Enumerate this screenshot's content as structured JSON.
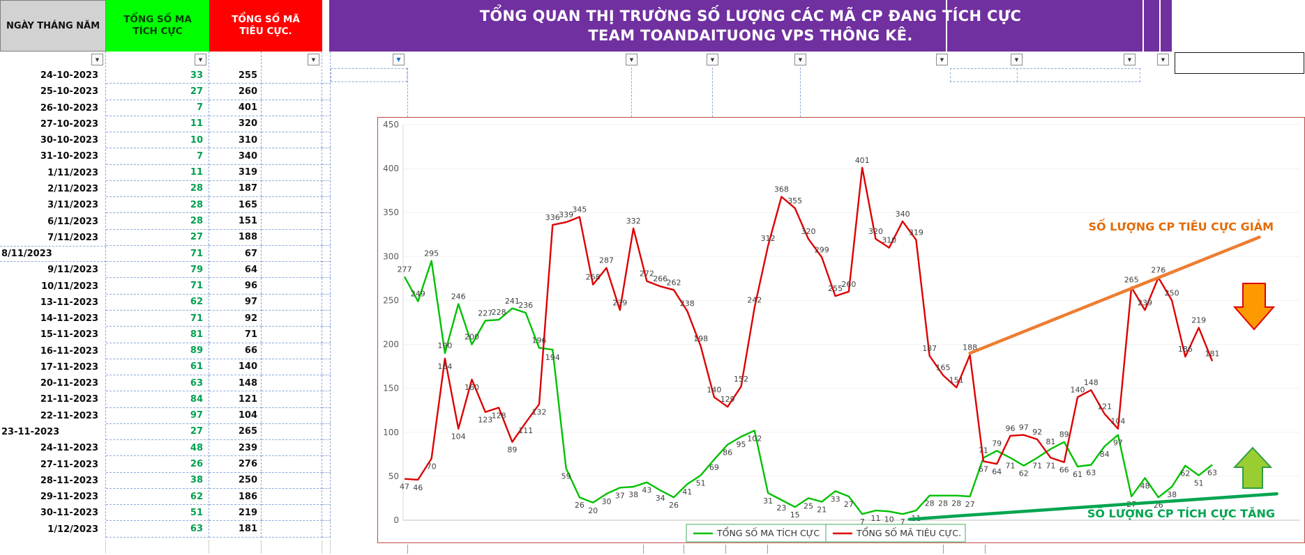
{
  "header": {
    "col_date": "NGÀY THÁNG NĂM",
    "col_positive": "TỔNG SỐ MA TÍCH CỰC",
    "col_negative": "TỔNG SỐ MÃ TIÊU CỰC.",
    "title_line1": "TỔNG QUAN THỊ TRƯỜNG SỐ LƯỢNG CÁC MÃ CP ĐANG TÍCH CỰC",
    "title_line2": "TEAM TOANDAITUONG VPS THÔNG KÊ."
  },
  "table": {
    "rows": [
      {
        "date": "24-10-2023",
        "positive": 33,
        "negative": 255
      },
      {
        "date": "25-10-2023",
        "positive": 27,
        "negative": 260
      },
      {
        "date": "26-10-2023",
        "positive": 7,
        "negative": 401
      },
      {
        "date": "27-10-2023",
        "positive": 11,
        "negative": 320
      },
      {
        "date": "30-10-2023",
        "positive": 10,
        "negative": 310
      },
      {
        "date": "31-10-2023",
        "positive": 7,
        "negative": 340
      },
      {
        "date": "1/11/2023",
        "positive": 11,
        "negative": 319
      },
      {
        "date": "2/11/2023",
        "positive": 28,
        "negative": 187
      },
      {
        "date": "3/11/2023",
        "positive": 28,
        "negative": 165
      },
      {
        "date": "6/11/2023",
        "positive": 28,
        "negative": 151
      },
      {
        "date": "7/11/2023",
        "positive": 27,
        "negative": 188
      },
      {
        "date": "8/11/2023",
        "positive": 71,
        "negative": 67,
        "align": "left",
        "marked": true
      },
      {
        "date": "9/11/2023",
        "positive": 79,
        "negative": 64
      },
      {
        "date": "10/11/2023",
        "positive": 71,
        "negative": 96
      },
      {
        "date": "13-11-2023",
        "positive": 62,
        "negative": 97
      },
      {
        "date": "14-11-2023",
        "positive": 71,
        "negative": 92
      },
      {
        "date": "15-11-2023",
        "positive": 81,
        "negative": 71
      },
      {
        "date": "16-11-2023",
        "positive": 89,
        "negative": 66
      },
      {
        "date": "17-11-2023",
        "positive": 61,
        "negative": 140
      },
      {
        "date": "20-11-2023",
        "positive": 63,
        "negative": 148
      },
      {
        "date": "21-11-2023",
        "positive": 84,
        "negative": 121
      },
      {
        "date": "22-11-2023",
        "positive": 97,
        "negative": 104
      },
      {
        "date": "23-11-2023",
        "positive": 27,
        "negative": 265,
        "align": "left"
      },
      {
        "date": "24-11-2023",
        "positive": 48,
        "negative": 239
      },
      {
        "date": "27-11-2023",
        "positive": 26,
        "negative": 276
      },
      {
        "date": "28-11-2023",
        "positive": 38,
        "negative": 250
      },
      {
        "date": "29-11-2023",
        "positive": 62,
        "negative": 186
      },
      {
        "date": "30-11-2023",
        "positive": 51,
        "negative": 219
      },
      {
        "date": "1/12/2023",
        "positive": 63,
        "negative": 181
      }
    ]
  },
  "chart_data": {
    "type": "line",
    "title": "",
    "xlabel": "",
    "ylabel": "",
    "ylim": [
      0,
      450
    ],
    "yticks": [
      0,
      50,
      100,
      150,
      200,
      250,
      300,
      350,
      400,
      450
    ],
    "grid": true,
    "legend_position": "bottom",
    "legend_border_color": "#3FAE5A",
    "series": [
      {
        "name": "TỔNG SỐ MA TÍCH CỰC",
        "color": "#00C000",
        "values": [
          277,
          249,
          295,
          190,
          246,
          200,
          227,
          228,
          241,
          236,
          196,
          194,
          59,
          26,
          20,
          30,
          37,
          38,
          43,
          34,
          26,
          41,
          51,
          69,
          86,
          95,
          102,
          31,
          23,
          15,
          25,
          21,
          33,
          27,
          7,
          11,
          10,
          7,
          11,
          28,
          28,
          28,
          27,
          71,
          79,
          71,
          62,
          71,
          81,
          89,
          61,
          63,
          84,
          97,
          27,
          48,
          26,
          38,
          62,
          51,
          63
        ]
      },
      {
        "name": "TỔNG SỐ MÃ TIÊU CỰC.",
        "color": "#DD0000",
        "values": [
          47,
          46,
          70,
          184,
          104,
          160,
          123,
          128,
          89,
          111,
          132,
          336,
          339,
          345,
          268,
          287,
          239,
          332,
          272,
          266,
          262,
          238,
          198,
          140,
          129,
          152,
          242,
          312,
          368,
          355,
          320,
          299,
          255,
          260,
          401,
          320,
          310,
          340,
          319,
          187,
          165,
          151,
          188,
          67,
          64,
          96,
          97,
          92,
          71,
          66,
          140,
          148,
          121,
          104,
          265,
          239,
          276,
          250,
          186,
          219,
          181
        ]
      }
    ],
    "trend_lines": [
      {
        "name": "negative-declining-trendline",
        "color": "#ED7D31",
        "from_index": 42,
        "from_value": 190,
        "to_index": 63.5,
        "to_value": 322
      },
      {
        "name": "positive-rising-trendline",
        "color": "#00A550",
        "from_index": 37.5,
        "from_value": 1,
        "to_index": 64.8,
        "to_value": 30
      }
    ],
    "annotations": [
      {
        "id": "negative-trend-label",
        "text": "SỐ LƯỢNG CP TIÊU CỰC GIẢM",
        "color": "#E36C09"
      },
      {
        "id": "positive-trend-label",
        "text": "SỐ LƯỢNG CP TÍCH CỰC TĂNG",
        "color": "#00A550"
      }
    ],
    "arrows": [
      {
        "id": "down-arrow",
        "direction": "down",
        "fill": "#FF9900",
        "stroke": "#E00000"
      },
      {
        "id": "up-arrow",
        "direction": "up",
        "fill": "#9ACD32",
        "stroke": "#2E9E44"
      }
    ]
  },
  "colors": {
    "banner_bg": "#7030A0",
    "positive_header_bg": "#00FF00",
    "negative_header_bg": "#FF0000",
    "date_header_bg": "#D2D2D2",
    "positive_value_text": "#00A050",
    "dashed_grid": "#8EA9DB"
  }
}
